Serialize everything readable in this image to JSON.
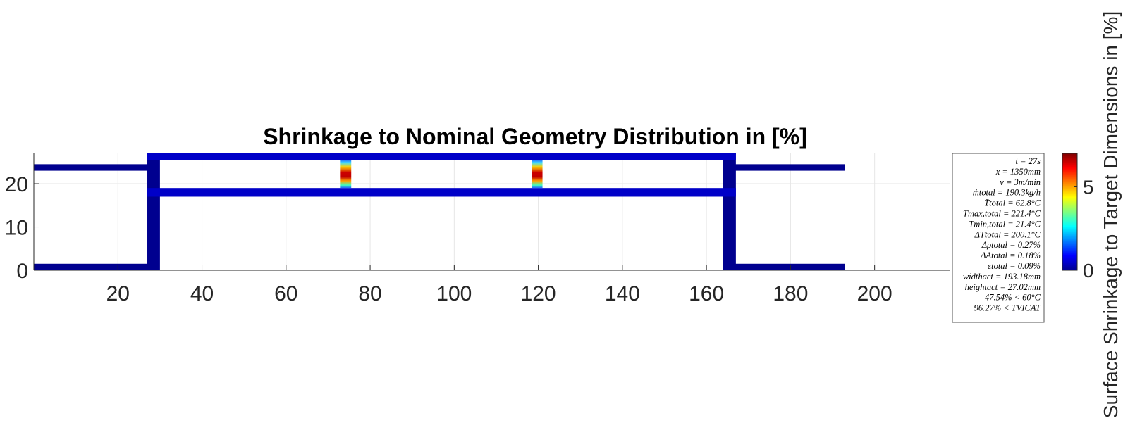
{
  "chart_data": {
    "type": "heatmap",
    "title": "Shrinkage to Nominal Geometry Distribution in [%]",
    "xlabel": "",
    "ylabel": "",
    "xlim": [
      0,
      218
    ],
    "ylim": [
      0,
      27
    ],
    "x_ticks": [
      20,
      40,
      60,
      80,
      100,
      120,
      140,
      160,
      180,
      200
    ],
    "y_ticks": [
      0,
      10,
      20
    ],
    "grid": true,
    "colormap": "jet",
    "colorbar": {
      "label": "Surface Shrinkage to Target Dimensions in [%]",
      "range": [
        0,
        7
      ],
      "ticks": [
        0,
        5
      ]
    },
    "profile_segments": [
      {
        "x": [
          0,
          28.5
        ],
        "y": [
          0,
          1.5
        ],
        "value": 0.2
      },
      {
        "x": [
          0,
          28.5
        ],
        "y": [
          23,
          24.5
        ],
        "value": 0.2
      },
      {
        "x": [
          27,
          30
        ],
        "y": [
          0,
          27
        ],
        "value": 0.2
      },
      {
        "x": [
          164,
          167
        ],
        "y": [
          0,
          27
        ],
        "value": 0.2
      },
      {
        "x": [
          27,
          167
        ],
        "y": [
          25.5,
          27
        ],
        "value": 0.3
      },
      {
        "x": [
          27,
          167
        ],
        "y": [
          17,
          19
        ],
        "value": 0.3
      },
      {
        "x": [
          165.5,
          193
        ],
        "y": [
          0,
          1.5
        ],
        "value": 0.2
      },
      {
        "x": [
          165.5,
          193
        ],
        "y": [
          23,
          24.5
        ],
        "value": 0.2
      }
    ],
    "hotspots": [
      {
        "x": [
          73,
          75.5
        ],
        "y": [
          19,
          25.5
        ],
        "peak": 7
      },
      {
        "x": [
          118.5,
          121
        ],
        "y": [
          19,
          25.5
        ],
        "peak": 7
      }
    ],
    "info_box": [
      "t = 27s",
      "x = 1350mm",
      "v = 3m/min",
      "ṁtotal = 190.3kg/h",
      "T̄total = 62.8°C",
      "Tmax,total = 221.4°C",
      "Tmin,total = 21.4°C",
      "ΔTtotal = 200.1°C",
      "Δρtotal = 0.27%",
      "ΔAtotal = 0.18%",
      "εtotal = 0.09%",
      "widthact = 193.18mm",
      "heightact = 27.02mm",
      "47.54% < 60°C",
      "96.27% < TVICAT"
    ]
  },
  "colors": {
    "profile": "#00008f",
    "profile_inner": "#0000c8",
    "grid": "#e6e6e6",
    "axis": "#262626"
  }
}
